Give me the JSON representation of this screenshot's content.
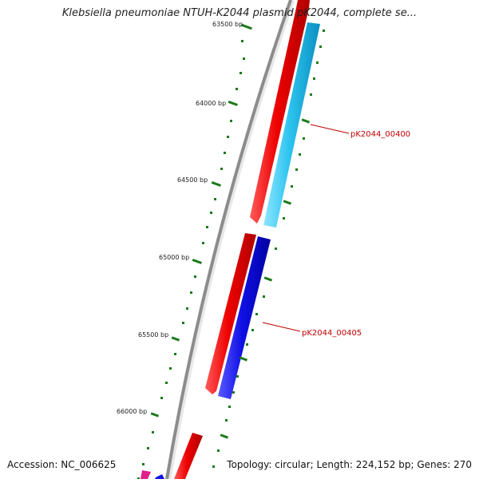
{
  "title": "Klebsiella pneumoniae NTUH-K2044 plasmid pK2044, complete se...",
  "ruler": {
    "labels": [
      "63500 bp",
      "64000 bp",
      "64500 bp",
      "65000 bp",
      "65500 bp",
      "66000 bp"
    ]
  },
  "genes": [
    {
      "name": "pK2044_00400",
      "color": "#2ec4f0"
    },
    {
      "name": "pK2044_00405",
      "color": "#1010e6"
    }
  ],
  "colors": {
    "backbone": "#8c8c8c",
    "forward_feature": "#ee0000",
    "tick": "#1a7a1a",
    "magenta_feature": "#e0208a",
    "label": "#c00000"
  },
  "footer": {
    "accession": "Accession: NC_006625",
    "summary": "Topology: circular; Length: 224,152 bp; Genes: 270"
  }
}
